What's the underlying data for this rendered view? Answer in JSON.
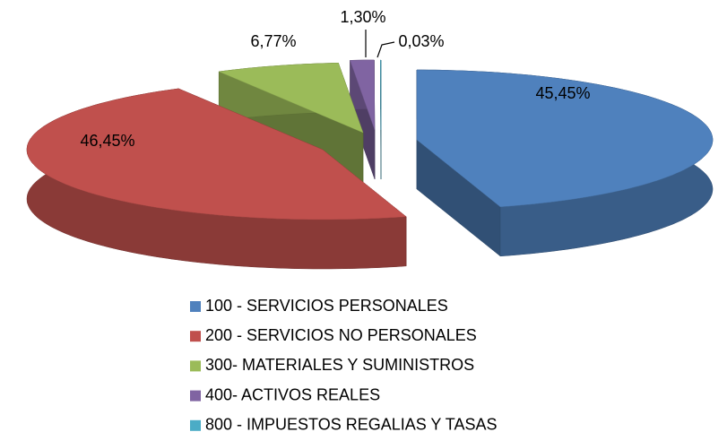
{
  "chart_data": {
    "type": "pie3d",
    "categories": [
      "100 - SERVICIOS PERSONALES",
      "200 - SERVICIOS NO PERSONALES",
      "300- MATERIALES Y SUMINISTROS",
      "400- ACTIVOS REALES",
      "800 - IMPUESTOS REGALIAS Y TASAS"
    ],
    "values": [
      45.45,
      46.45,
      6.77,
      1.3,
      0.03
    ],
    "value_labels": [
      "45,45%",
      "46,45%",
      "6,77%",
      "1,30%",
      "0,03%"
    ],
    "colors": [
      "#4f81bd",
      "#c0504d",
      "#9bbb59",
      "#8064a2",
      "#4bacc6"
    ],
    "legend": "bottom"
  }
}
